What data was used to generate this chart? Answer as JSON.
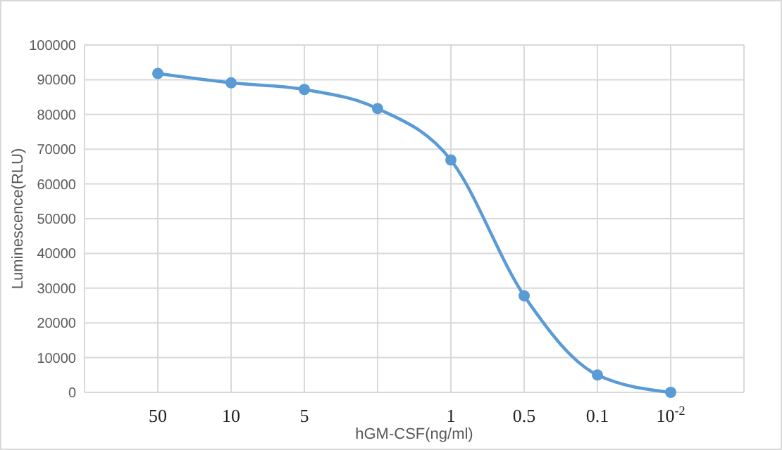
{
  "chart_data": {
    "type": "line",
    "xlabel": "hGM-CSF(ng/ml)",
    "ylabel": "Luminescence(RLU)",
    "categories": [
      "50",
      "10",
      "5",
      null,
      "1",
      "0.5",
      "0.1",
      "10$^{-2}$"
    ],
    "series": [
      {
        "color": "#5b9bd5",
        "values": [
          91800,
          89100,
          87200,
          81700,
          66900,
          27800,
          5000,
          0
        ]
      }
    ],
    "ylim": [
      0,
      100000
    ],
    "yticks": [
      0,
      10000,
      20000,
      30000,
      40000,
      50000,
      60000,
      70000,
      80000,
      90000,
      100000
    ],
    "grid": true,
    "marker": "circle",
    "line_style": "solid"
  }
}
